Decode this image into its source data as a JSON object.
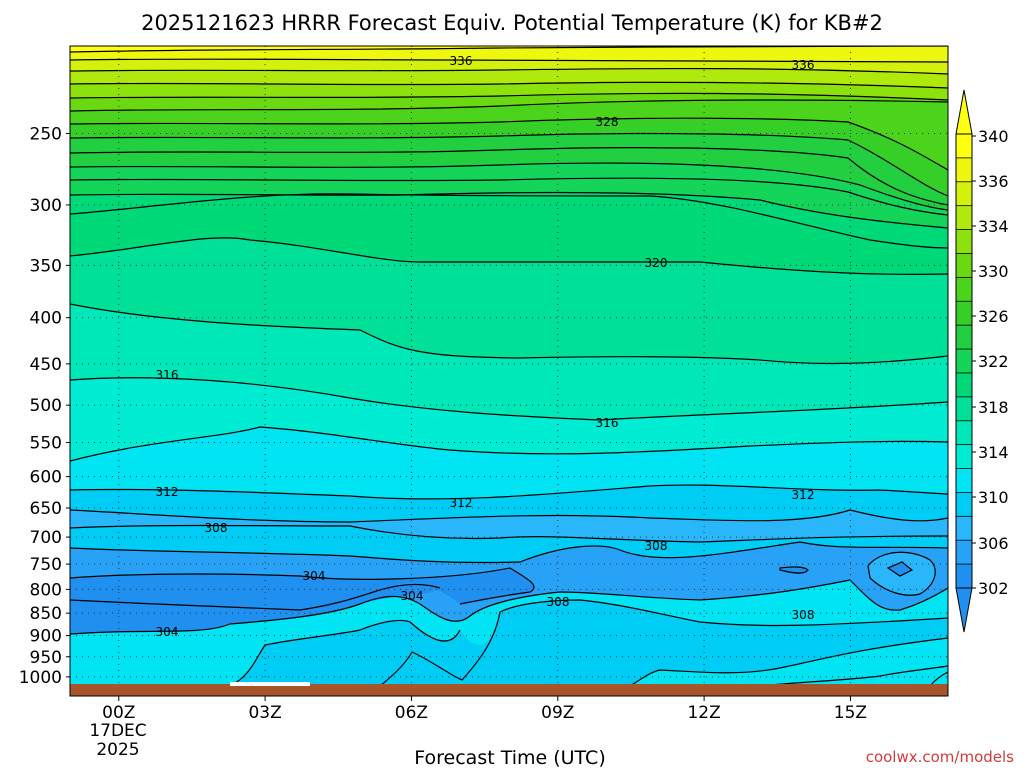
{
  "chart_data": {
    "type": "heatmap",
    "title": "2025121623 HRRR Forecast Equiv. Potential Temperature (K) for KB#2",
    "xlabel": "Forecast Time (UTC)",
    "ylabel": "",
    "x_ticks": [
      {
        "label": "00Z",
        "hour": 0
      },
      {
        "label": "03Z",
        "hour": 3
      },
      {
        "label": "06Z",
        "hour": 6
      },
      {
        "label": "09Z",
        "hour": 9
      },
      {
        "label": "12Z",
        "hour": 12
      },
      {
        "label": "15Z",
        "hour": 15
      }
    ],
    "x_date_label": [
      "17DEC",
      "2025"
    ],
    "xlim": [
      -1,
      17
    ],
    "y_ticks": [
      250,
      300,
      350,
      400,
      450,
      500,
      550,
      600,
      650,
      700,
      750,
      800,
      850,
      900,
      950,
      1000
    ],
    "ylim": [
      1050,
      200
    ],
    "y_scale": "log",
    "grid": true,
    "colorbar": {
      "levels": [
        302,
        304,
        306,
        308,
        310,
        312,
        314,
        316,
        318,
        320,
        322,
        324,
        326,
        328,
        330,
        332,
        334,
        336,
        338,
        340
      ],
      "tick_labels": [
        302,
        306,
        310,
        314,
        318,
        322,
        326,
        330,
        334,
        336,
        340
      ],
      "colors": [
        "#1f8ff0",
        "#27a2f6",
        "#2ab6fb",
        "#00cdf6",
        "#00e4f4",
        "#00ecd3",
        "#00e8b7",
        "#00e097",
        "#00d978",
        "#14d45a",
        "#22cf40",
        "#36cf28",
        "#4cd41c",
        "#6bd912",
        "#8de20d",
        "#b0e90c",
        "#d3f10d",
        "#eef80f",
        "#ffff10"
      ],
      "extend": "both"
    },
    "contour_labels": [
      "336",
      "336",
      "328",
      "320",
      "316",
      "316",
      "312",
      "312",
      "312",
      "308",
      "308",
      "308",
      "308",
      "304",
      "304",
      "304"
    ],
    "ground_color": "#a9552c"
  },
  "credit": "coolwx.com/models"
}
